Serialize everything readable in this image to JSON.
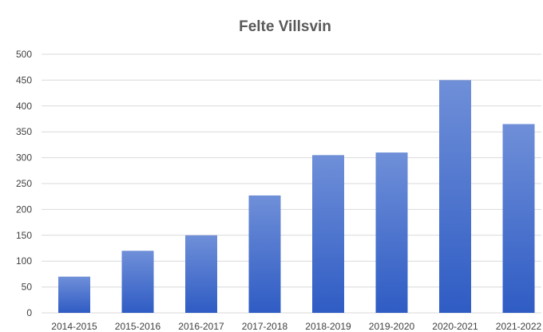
{
  "chart_data": {
    "type": "bar",
    "title": "Felte Villsvin",
    "xlabel": "",
    "ylabel": "",
    "categories": [
      "2014-2015",
      "2015-2016",
      "2016-2017",
      "2017-2018",
      "2018-2019",
      "2019-2020",
      "2020-2021",
      "2021-2022"
    ],
    "values": [
      70,
      120,
      150,
      227,
      305,
      310,
      450,
      365
    ],
    "ylim": [
      0,
      500
    ],
    "yticks": [
      "0",
      "50",
      "100",
      "150",
      "200",
      "250",
      "300",
      "350",
      "400",
      "450",
      "500"
    ],
    "grid": true,
    "legend": "none",
    "colors": {
      "bar_top": "#6f8fd8",
      "bar_bottom": "#2f5cc4",
      "grid": "#d9d9d9",
      "title": "#595959",
      "tick": "#404040"
    }
  }
}
